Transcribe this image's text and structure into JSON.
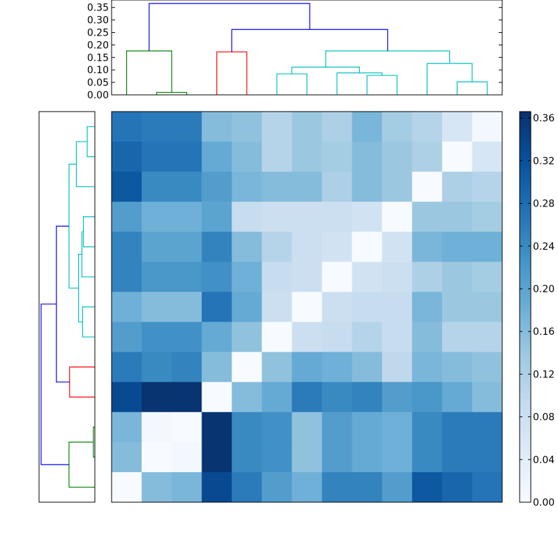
{
  "chart_data": [
    {
      "type": "dendrogram",
      "orientation": "top",
      "ylim": [
        0,
        0.38
      ],
      "yticks": [
        "0.00",
        "0.05",
        "0.10",
        "0.15",
        "0.20",
        "0.25",
        "0.30",
        "0.35"
      ],
      "ytick_values": [
        0,
        0.05,
        0.1,
        0.15,
        0.2,
        0.25,
        0.3,
        0.35
      ],
      "n_leaves": 13,
      "links": [
        {
          "left": 1.0,
          "right": 2.0,
          "height": 0.01,
          "left_base": 0,
          "right_base": 0,
          "color": "#008000"
        },
        {
          "left": 0.0,
          "right": 1.5,
          "height": 0.176,
          "left_base": 0,
          "right_base": 0.01,
          "color": "#008000"
        },
        {
          "left": 3.0,
          "right": 4.0,
          "height": 0.172,
          "left_base": 0,
          "right_base": 0,
          "color": "#ff0000"
        },
        {
          "left": 5.0,
          "right": 6.0,
          "height": 0.084,
          "left_base": 0,
          "right_base": 0,
          "color": "#00bfbf"
        },
        {
          "left": 8.0,
          "right": 9.0,
          "height": 0.078,
          "left_base": 0,
          "right_base": 0,
          "color": "#00bfbf"
        },
        {
          "left": 7.0,
          "right": 8.5,
          "height": 0.088,
          "left_base": 0,
          "right_base": 0.078,
          "color": "#00bfbf"
        },
        {
          "left": 5.5,
          "right": 7.75,
          "height": 0.111,
          "left_base": 0.084,
          "right_base": 0.088,
          "color": "#00bfbf"
        },
        {
          "left": 11.0,
          "right": 12.0,
          "height": 0.052,
          "left_base": 0,
          "right_base": 0,
          "color": "#00bfbf"
        },
        {
          "left": 10.0,
          "right": 11.5,
          "height": 0.126,
          "left_base": 0,
          "right_base": 0.052,
          "color": "#00bfbf"
        },
        {
          "left": 6.625,
          "right": 10.75,
          "height": 0.176,
          "left_base": 0.111,
          "right_base": 0.126,
          "color": "#00bfbf"
        },
        {
          "left": 3.5,
          "right": 8.6875,
          "height": 0.262,
          "left_base": 0.172,
          "right_base": 0.176,
          "color": "#0000ff"
        },
        {
          "left": 0.75,
          "right": 6.09375,
          "height": 0.366,
          "left_base": 0.176,
          "right_base": 0.262,
          "color": "#0000ff"
        }
      ]
    },
    {
      "type": "dendrogram",
      "orientation": "left",
      "xlim": [
        0,
        0.38
      ],
      "n_leaves": 13,
      "links": [
        {
          "left": 1.0,
          "right": 2.0,
          "height": 0.01,
          "left_base": 0,
          "right_base": 0,
          "color": "#008000"
        },
        {
          "left": 0.0,
          "right": 1.5,
          "height": 0.176,
          "left_base": 0,
          "right_base": 0.01,
          "color": "#008000"
        },
        {
          "left": 3.0,
          "right": 4.0,
          "height": 0.172,
          "left_base": 0,
          "right_base": 0,
          "color": "#ff0000"
        },
        {
          "left": 5.0,
          "right": 6.0,
          "height": 0.084,
          "left_base": 0,
          "right_base": 0,
          "color": "#00bfbf"
        },
        {
          "left": 8.0,
          "right": 9.0,
          "height": 0.078,
          "left_base": 0,
          "right_base": 0,
          "color": "#00bfbf"
        },
        {
          "left": 7.0,
          "right": 8.5,
          "height": 0.088,
          "left_base": 0,
          "right_base": 0.078,
          "color": "#00bfbf"
        },
        {
          "left": 5.5,
          "right": 7.75,
          "height": 0.111,
          "left_base": 0.084,
          "right_base": 0.088,
          "color": "#00bfbf"
        },
        {
          "left": 11.0,
          "right": 12.0,
          "height": 0.052,
          "left_base": 0,
          "right_base": 0,
          "color": "#00bfbf"
        },
        {
          "left": 10.0,
          "right": 11.5,
          "height": 0.126,
          "left_base": 0,
          "right_base": 0.052,
          "color": "#00bfbf"
        },
        {
          "left": 6.625,
          "right": 10.75,
          "height": 0.176,
          "left_base": 0.111,
          "right_base": 0.126,
          "color": "#00bfbf"
        },
        {
          "left": 3.5,
          "right": 8.6875,
          "height": 0.262,
          "left_base": 0.172,
          "right_base": 0.176,
          "color": "#0000ff"
        },
        {
          "left": 0.75,
          "right": 6.09375,
          "height": 0.366,
          "left_base": 0.176,
          "right_base": 0.262,
          "color": "#0000ff"
        }
      ]
    },
    {
      "type": "heatmap",
      "colormap": "Blues",
      "vmin": 0.0,
      "vmax": 0.366,
      "colorbar_ticks": [
        "0.00",
        "0.04",
        "0.08",
        "0.12",
        "0.16",
        "0.20",
        "0.24",
        "0.28",
        "0.32",
        "0.36"
      ],
      "colorbar_tick_values": [
        0.0,
        0.04,
        0.08,
        0.12,
        0.16,
        0.2,
        0.24,
        0.28,
        0.32,
        0.36
      ],
      "rows_top_to_bottom": [
        [
          0.27,
          0.26,
          0.26,
          0.16,
          0.15,
          0.11,
          0.14,
          0.12,
          0.17,
          0.13,
          0.11,
          0.06,
          0.01
        ],
        [
          0.29,
          0.27,
          0.27,
          0.19,
          0.16,
          0.11,
          0.14,
          0.13,
          0.16,
          0.14,
          0.12,
          0.0,
          0.06
        ],
        [
          0.31,
          0.24,
          0.24,
          0.21,
          0.17,
          0.16,
          0.16,
          0.12,
          0.16,
          0.14,
          0.0,
          0.12,
          0.11
        ],
        [
          0.21,
          0.18,
          0.18,
          0.2,
          0.09,
          0.08,
          0.08,
          0.08,
          0.07,
          0.0,
          0.14,
          0.14,
          0.13
        ],
        [
          0.25,
          0.2,
          0.2,
          0.25,
          0.16,
          0.11,
          0.08,
          0.07,
          0.0,
          0.07,
          0.17,
          0.18,
          0.18
        ],
        [
          0.25,
          0.22,
          0.22,
          0.23,
          0.18,
          0.09,
          0.08,
          0.0,
          0.07,
          0.08,
          0.12,
          0.14,
          0.13
        ],
        [
          0.18,
          0.16,
          0.16,
          0.27,
          0.19,
          0.08,
          0.0,
          0.08,
          0.09,
          0.09,
          0.17,
          0.14,
          0.14
        ],
        [
          0.21,
          0.23,
          0.23,
          0.19,
          0.15,
          0.0,
          0.08,
          0.09,
          0.11,
          0.09,
          0.16,
          0.11,
          0.11
        ],
        [
          0.26,
          0.24,
          0.25,
          0.16,
          0.0,
          0.15,
          0.19,
          0.18,
          0.16,
          0.1,
          0.17,
          0.16,
          0.15
        ],
        [
          0.33,
          0.36,
          0.36,
          0.0,
          0.16,
          0.19,
          0.26,
          0.24,
          0.25,
          0.21,
          0.22,
          0.19,
          0.16
        ],
        [
          0.17,
          0.01,
          0.0,
          0.36,
          0.24,
          0.23,
          0.15,
          0.21,
          0.19,
          0.18,
          0.24,
          0.26,
          0.26
        ],
        [
          0.16,
          0.0,
          0.01,
          0.36,
          0.24,
          0.23,
          0.15,
          0.21,
          0.19,
          0.18,
          0.24,
          0.26,
          0.26
        ],
        [
          0.0,
          0.16,
          0.17,
          0.33,
          0.26,
          0.21,
          0.18,
          0.25,
          0.25,
          0.21,
          0.31,
          0.29,
          0.27
        ]
      ]
    }
  ]
}
